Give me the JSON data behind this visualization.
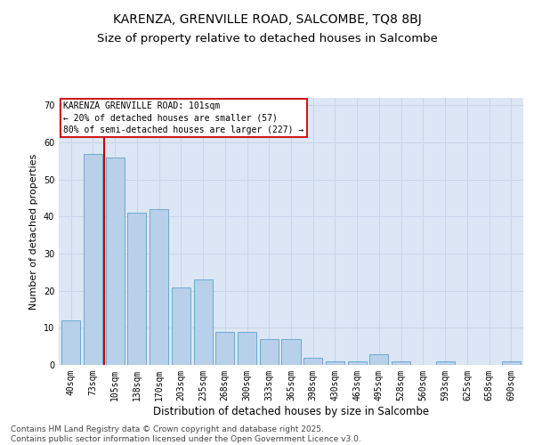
{
  "title_line1": "KARENZA, GRENVILLE ROAD, SALCOMBE, TQ8 8BJ",
  "title_line2": "Size of property relative to detached houses in Salcombe",
  "xlabel": "Distribution of detached houses by size in Salcombe",
  "ylabel": "Number of detached properties",
  "categories": [
    "40sqm",
    "73sqm",
    "105sqm",
    "138sqm",
    "170sqm",
    "203sqm",
    "235sqm",
    "268sqm",
    "300sqm",
    "333sqm",
    "365sqm",
    "398sqm",
    "430sqm",
    "463sqm",
    "495sqm",
    "528sqm",
    "560sqm",
    "593sqm",
    "625sqm",
    "658sqm",
    "690sqm"
  ],
  "values": [
    12,
    57,
    56,
    41,
    42,
    21,
    23,
    9,
    9,
    7,
    7,
    2,
    1,
    1,
    3,
    1,
    0,
    1,
    0,
    0,
    1
  ],
  "bar_color": "#b8d0ea",
  "bar_edge_color": "#6aaad4",
  "vline_x": 1.5,
  "vline_color": "#cc0000",
  "ylim": [
    0,
    72
  ],
  "yticks": [
    0,
    10,
    20,
    30,
    40,
    50,
    60,
    70
  ],
  "annotation_line1": "KARENZA GRENVILLE ROAD: 101sqm",
  "annotation_line2": "← 20% of detached houses are smaller (57)",
  "annotation_line3": "80% of semi-detached houses are larger (227) →",
  "annotation_box_color": "#ffffff",
  "annotation_box_edge": "#cc0000",
  "grid_color": "#c8d4e8",
  "background_color": "#dce6f5",
  "footer_line1": "Contains HM Land Registry data © Crown copyright and database right 2025.",
  "footer_line2": "Contains public sector information licensed under the Open Government Licence v3.0.",
  "title_fontsize": 10,
  "subtitle_fontsize": 9.5,
  "tick_fontsize": 7,
  "xlabel_fontsize": 8.5,
  "ylabel_fontsize": 8,
  "footer_fontsize": 6.5,
  "ann_fontsize": 7
}
